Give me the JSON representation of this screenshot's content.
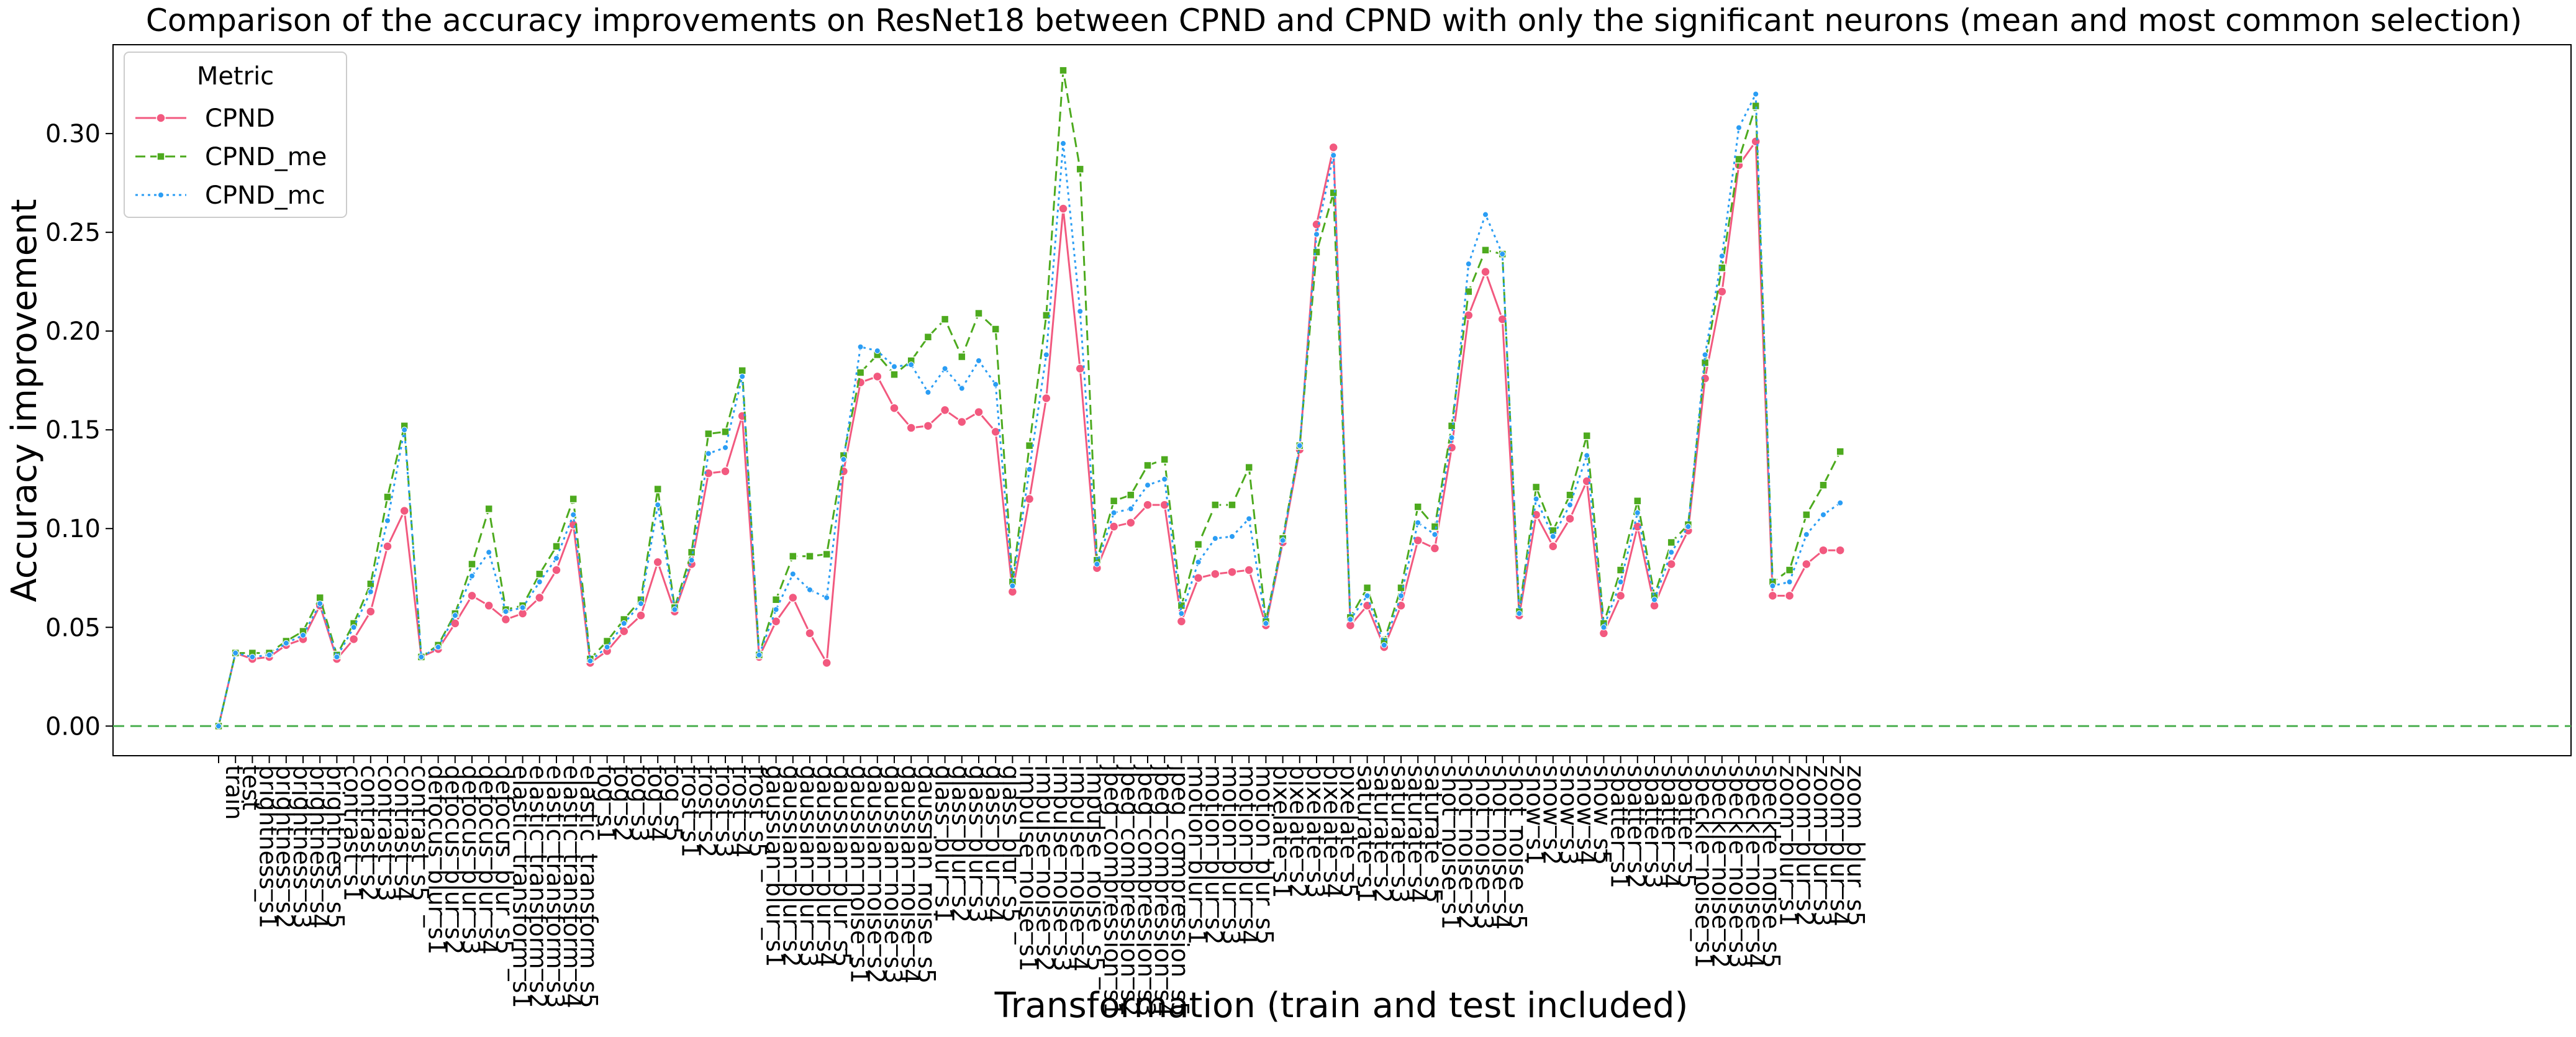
{
  "chart_data": {
    "type": "line",
    "title": "Comparison of the accuracy improvements on ResNet18 between CPND and CPND with only the significant neurons (mean and most common selection)",
    "xlabel": "Transformation (train and test included)",
    "ylabel": "Accuracy improvement",
    "ylim": [
      -0.015,
      0.345
    ],
    "yticks": [
      "0.00",
      "0.05",
      "0.10",
      "0.15",
      "0.20",
      "0.25",
      "0.30"
    ],
    "grid": false,
    "reference_line": {
      "y": 0.0,
      "color": "#4caf50",
      "style": "dashed"
    },
    "legend": {
      "title": "Metric",
      "position": "top-left"
    },
    "categories": [
      "train",
      "test",
      "brightness_s1",
      "brightness_s2",
      "brightness_s3",
      "brightness_s4",
      "brightness_s5",
      "contrast_s1",
      "contrast_s2",
      "contrast_s3",
      "contrast_s4",
      "contrast_s5",
      "defocus_blur_s1",
      "defocus_blur_s2",
      "defocus_blur_s3",
      "defocus_blur_s4",
      "defocus_blur_s5",
      "elastic_transform_s1",
      "elastic_transform_s2",
      "elastic_transform_s3",
      "elastic_transform_s4",
      "elastic_transform_s5",
      "fog_s1",
      "fog_s2",
      "fog_s3",
      "fog_s4",
      "fog_s5",
      "frost_s1",
      "frost_s2",
      "frost_s3",
      "frost_s4",
      "frost_s5",
      "gaussian_blur_s1",
      "gaussian_blur_s2",
      "gaussian_blur_s3",
      "gaussian_blur_s4",
      "gaussian_blur_s5",
      "gaussian_noise_s1",
      "gaussian_noise_s2",
      "gaussian_noise_s3",
      "gaussian_noise_s4",
      "gaussian_noise_s5",
      "glass_blur_s1",
      "glass_blur_s2",
      "glass_blur_s3",
      "glass_blur_s4",
      "glass_blur_s5",
      "impulse_noise_s1",
      "impulse_noise_s2",
      "impulse_noise_s3",
      "impulse_noise_s4",
      "impulse_noise_s5",
      "jpeg_compression_s1",
      "jpeg_compression_s2",
      "jpeg_compression_s3",
      "jpeg_compression_s4",
      "jpeg_compression_s5",
      "motion_blur_s1",
      "motion_blur_s2",
      "motion_blur_s3",
      "motion_blur_s4",
      "motion_blur_s5",
      "pixelate_s1",
      "pixelate_s2",
      "pixelate_s3",
      "pixelate_s4",
      "pixelate_s5",
      "saturate_s1",
      "saturate_s2",
      "saturate_s3",
      "saturate_s4",
      "saturate_s5",
      "shot_noise_s1",
      "shot_noise_s2",
      "shot_noise_s3",
      "shot_noise_s4",
      "shot_noise_s5",
      "snow_s1",
      "snow_s2",
      "snow_s3",
      "snow_s4",
      "snow_s5",
      "spatter_s1",
      "spatter_s2",
      "spatter_s3",
      "spatter_s4",
      "spatter_s5",
      "speckle_noise_s1",
      "speckle_noise_s2",
      "speckle_noise_s3",
      "speckle_noise_s4",
      "speckle_noise_s5",
      "zoom_blur_s1",
      "zoom_blur_s2",
      "zoom_blur_s3",
      "zoom_blur_s4",
      "zoom_blur_s5"
    ],
    "series": [
      {
        "name": "CPND",
        "color": "#f2597f",
        "dash": "solid",
        "marker": "circle",
        "values": [
          0.0,
          0.037,
          0.034,
          0.035,
          0.041,
          0.044,
          0.061,
          0.034,
          0.044,
          0.058,
          0.091,
          0.109,
          0.035,
          0.039,
          0.052,
          0.066,
          0.061,
          0.054,
          0.057,
          0.065,
          0.079,
          0.102,
          0.032,
          0.038,
          0.048,
          0.056,
          0.083,
          0.058,
          0.082,
          0.128,
          0.129,
          0.157,
          0.035,
          0.053,
          0.065,
          0.047,
          0.032,
          0.129,
          0.174,
          0.177,
          0.161,
          0.151,
          0.152,
          0.16,
          0.154,
          0.159,
          0.149,
          0.068,
          0.115,
          0.166,
          0.262,
          0.181,
          0.08,
          0.101,
          0.103,
          0.112,
          0.112,
          0.053,
          0.075,
          0.077,
          0.078,
          0.079,
          0.051,
          0.093,
          0.14,
          0.254,
          0.293,
          0.051,
          0.061,
          0.04,
          0.061,
          0.094,
          0.09,
          0.141,
          0.208,
          0.23,
          0.206,
          0.056,
          0.107,
          0.091,
          0.105,
          0.124,
          0.047,
          0.066,
          0.101,
          0.061,
          0.082,
          0.099,
          0.176,
          0.22,
          0.284,
          0.296,
          0.066,
          0.066,
          0.082,
          0.089,
          0.089
        ]
      },
      {
        "name": "CPND_me",
        "color": "#4daa1e",
        "dash": "dashed",
        "marker": "square",
        "values": [
          0.0,
          0.037,
          0.037,
          0.037,
          0.043,
          0.048,
          0.065,
          0.036,
          0.052,
          0.072,
          0.116,
          0.152,
          0.035,
          0.041,
          0.057,
          0.082,
          0.11,
          0.059,
          0.061,
          0.077,
          0.091,
          0.115,
          0.034,
          0.043,
          0.054,
          0.064,
          0.12,
          0.06,
          0.088,
          0.148,
          0.149,
          0.18,
          0.036,
          0.064,
          0.086,
          0.086,
          0.087,
          0.137,
          0.179,
          0.188,
          0.178,
          0.185,
          0.197,
          0.206,
          0.187,
          0.209,
          0.201,
          0.073,
          0.142,
          0.208,
          0.332,
          0.282,
          0.084,
          0.114,
          0.117,
          0.132,
          0.135,
          0.061,
          0.092,
          0.112,
          0.112,
          0.131,
          0.053,
          0.095,
          0.142,
          0.24,
          0.27,
          0.055,
          0.07,
          0.043,
          0.07,
          0.111,
          0.101,
          0.152,
          0.22,
          0.241,
          0.239,
          0.058,
          0.121,
          0.099,
          0.117,
          0.147,
          0.052,
          0.079,
          0.114,
          0.066,
          0.093,
          0.102,
          0.184,
          0.232,
          0.287,
          0.314,
          0.073,
          0.079,
          0.107,
          0.122,
          0.139
        ]
      },
      {
        "name": "CPND_mc",
        "color": "#2a9df4",
        "dash": "dotted",
        "marker": "small",
        "values": [
          0.0,
          0.037,
          0.035,
          0.036,
          0.042,
          0.046,
          0.062,
          0.035,
          0.05,
          0.068,
          0.104,
          0.15,
          0.035,
          0.04,
          0.056,
          0.076,
          0.088,
          0.058,
          0.06,
          0.073,
          0.085,
          0.107,
          0.033,
          0.04,
          0.052,
          0.062,
          0.112,
          0.059,
          0.084,
          0.138,
          0.141,
          0.177,
          0.036,
          0.059,
          0.077,
          0.069,
          0.065,
          0.135,
          0.192,
          0.19,
          0.182,
          0.183,
          0.169,
          0.181,
          0.171,
          0.185,
          0.173,
          0.071,
          0.13,
          0.188,
          0.295,
          0.21,
          0.082,
          0.108,
          0.11,
          0.122,
          0.125,
          0.057,
          0.083,
          0.095,
          0.096,
          0.105,
          0.052,
          0.094,
          0.142,
          0.249,
          0.289,
          0.054,
          0.066,
          0.041,
          0.066,
          0.103,
          0.097,
          0.146,
          0.234,
          0.259,
          0.239,
          0.057,
          0.115,
          0.096,
          0.112,
          0.137,
          0.05,
          0.073,
          0.108,
          0.064,
          0.088,
          0.101,
          0.188,
          0.238,
          0.303,
          0.32,
          0.071,
          0.073,
          0.097,
          0.107,
          0.113
        ]
      }
    ]
  }
}
